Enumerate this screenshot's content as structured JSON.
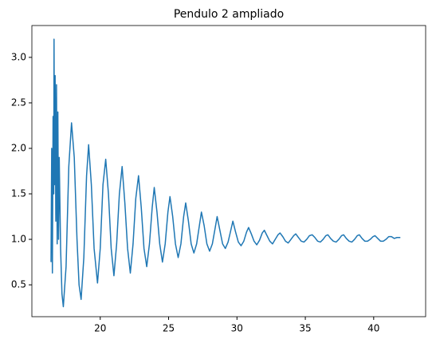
{
  "chart_data": {
    "type": "line",
    "title": "Pendulo 2 ampliado",
    "x": [
      16.4,
      16.45,
      16.5,
      16.55,
      16.6,
      16.62,
      16.65,
      16.7,
      16.75,
      16.8,
      16.85,
      16.9,
      16.95,
      17.0,
      17.1,
      17.2,
      17.3,
      17.5,
      17.7,
      17.9,
      18.1,
      18.3,
      18.45,
      18.6,
      18.8,
      19.0,
      19.15,
      19.35,
      19.55,
      19.8,
      20.0,
      20.2,
      20.4,
      20.6,
      20.8,
      21.0,
      21.2,
      21.4,
      21.6,
      21.8,
      22.0,
      22.2,
      22.4,
      22.6,
      22.8,
      23.0,
      23.2,
      23.4,
      23.6,
      23.8,
      23.95,
      24.15,
      24.35,
      24.55,
      24.75,
      24.95,
      25.1,
      25.3,
      25.5,
      25.7,
      25.9,
      26.1,
      26.25,
      26.45,
      26.65,
      26.85,
      27.05,
      27.25,
      27.4,
      27.6,
      27.8,
      28.0,
      28.2,
      28.4,
      28.55,
      28.75,
      28.95,
      29.15,
      29.35,
      29.55,
      29.7,
      29.9,
      30.1,
      30.3,
      30.5,
      30.7,
      30.85,
      31.05,
      31.25,
      31.45,
      31.65,
      31.85,
      32.0,
      32.2,
      32.4,
      32.6,
      32.8,
      33.0,
      33.15,
      33.35,
      33.55,
      33.75,
      33.95,
      34.15,
      34.3,
      34.5,
      34.7,
      34.9,
      35.1,
      35.3,
      35.5,
      35.7,
      35.9,
      36.1,
      36.3,
      36.5,
      36.65,
      36.85,
      37.05,
      37.25,
      37.45,
      37.65,
      37.8,
      38.0,
      38.2,
      38.4,
      38.6,
      38.8,
      38.95,
      39.15,
      39.35,
      39.55,
      39.75,
      39.95,
      40.1,
      40.3,
      40.5,
      40.7,
      40.9,
      41.1,
      41.3,
      41.5,
      41.7,
      41.95
    ],
    "series": [
      {
        "name": "Pendulo 2",
        "color": "#1f77b4",
        "values": [
          0.75,
          2.0,
          0.63,
          2.35,
          1.5,
          3.2,
          1.6,
          2.8,
          1.2,
          2.7,
          0.95,
          2.4,
          1.0,
          1.9,
          0.9,
          0.4,
          0.26,
          0.7,
          1.8,
          2.28,
          1.9,
          1.0,
          0.5,
          0.34,
          0.8,
          1.7,
          2.04,
          1.6,
          0.9,
          0.52,
          0.9,
          1.6,
          1.88,
          1.5,
          0.9,
          0.6,
          0.95,
          1.5,
          1.8,
          1.4,
          0.9,
          0.63,
          0.95,
          1.45,
          1.7,
          1.35,
          0.9,
          0.7,
          0.95,
          1.35,
          1.57,
          1.3,
          0.95,
          0.75,
          0.95,
          1.3,
          1.47,
          1.25,
          0.95,
          0.8,
          0.95,
          1.25,
          1.4,
          1.2,
          0.95,
          0.85,
          0.95,
          1.15,
          1.3,
          1.15,
          0.95,
          0.87,
          0.95,
          1.12,
          1.25,
          1.1,
          0.95,
          0.9,
          0.97,
          1.1,
          1.2,
          1.08,
          0.97,
          0.93,
          0.98,
          1.08,
          1.13,
          1.06,
          0.98,
          0.94,
          0.99,
          1.07,
          1.1,
          1.04,
          0.98,
          0.95,
          1.0,
          1.05,
          1.07,
          1.03,
          0.98,
          0.96,
          1.0,
          1.04,
          1.06,
          1.02,
          0.98,
          0.97,
          1.0,
          1.04,
          1.05,
          1.02,
          0.98,
          0.97,
          1.0,
          1.04,
          1.05,
          1.01,
          0.98,
          0.97,
          1.0,
          1.04,
          1.05,
          1.01,
          0.98,
          0.97,
          1.0,
          1.04,
          1.05,
          1.01,
          0.98,
          0.98,
          1.0,
          1.03,
          1.04,
          1.01,
          0.98,
          0.98,
          1.0,
          1.03,
          1.03,
          1.01,
          1.02,
          1.02
        ]
      }
    ],
    "xlim": [
      15.0,
      43.8
    ],
    "ylim": [
      0.15,
      3.35
    ],
    "xticks": [
      20,
      25,
      30,
      35,
      40
    ],
    "yticks": [
      {
        "value": 0.5,
        "label": "0.5"
      },
      {
        "value": 1.0,
        "label": "1.0"
      },
      {
        "value": 1.5,
        "label": "1.5"
      },
      {
        "value": 2.0,
        "label": "2.0"
      },
      {
        "value": 2.5,
        "label": "2.5"
      },
      {
        "value": 3.0,
        "label": "3.0"
      }
    ],
    "grid": false
  }
}
